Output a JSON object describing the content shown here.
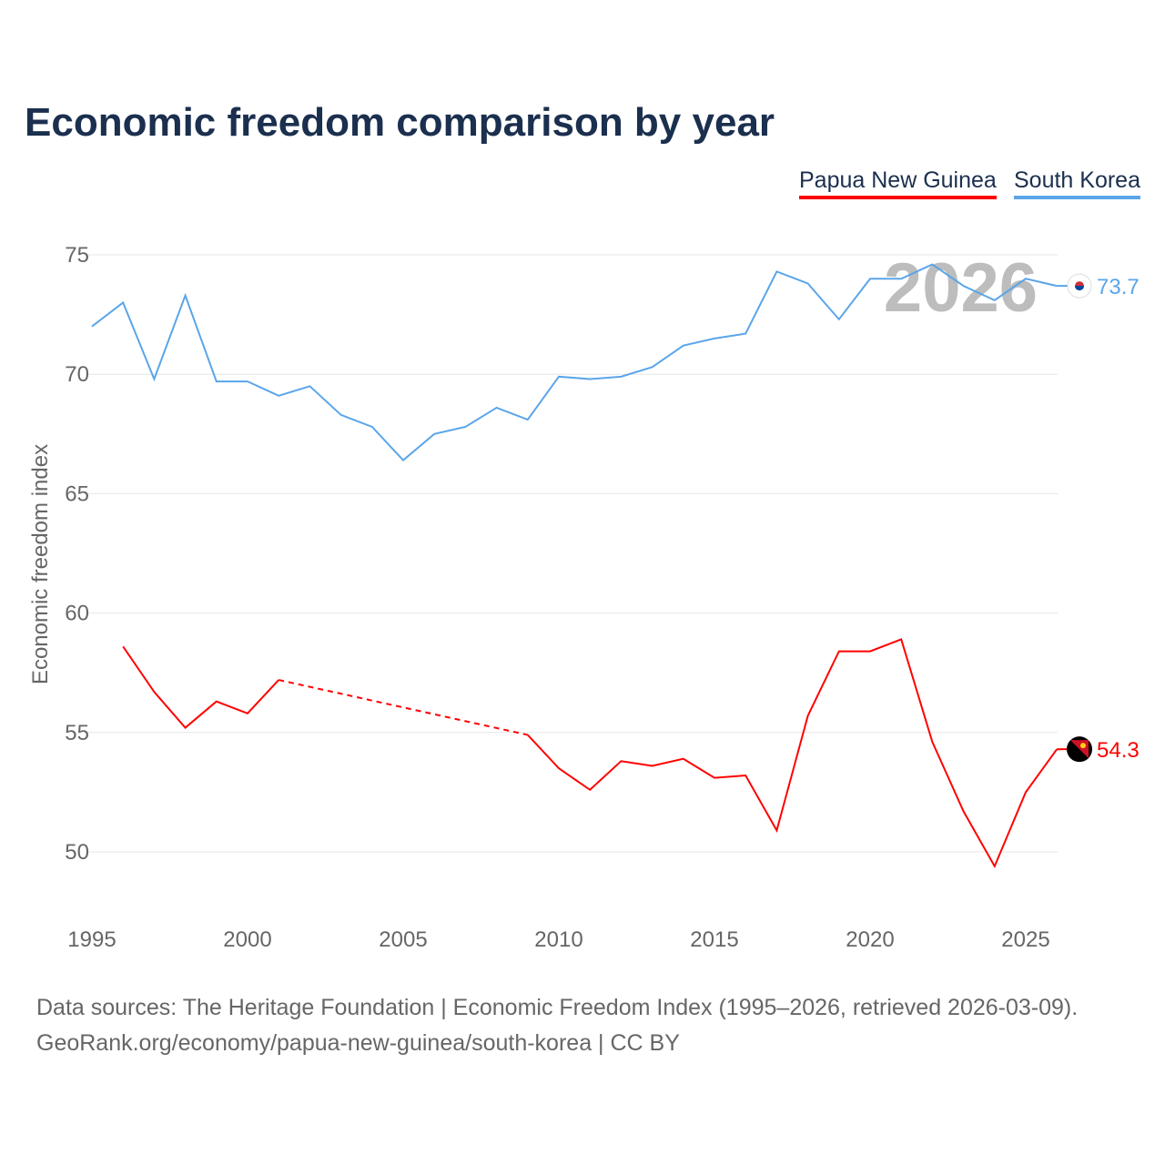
{
  "title": "Economic freedom comparison by year",
  "source_lines": [
    "Data sources: The Heritage Foundation | Economic Freedom Index (1995–2026, retrieved 2026-03-09).",
    "GeoRank.org/economy/papua-new-guinea/south-korea | CC BY"
  ],
  "chart_data": {
    "type": "line",
    "title": "Economic freedom comparison by year",
    "xlabel": "",
    "ylabel": "Economic freedom index",
    "year_label": "2026",
    "x": [
      1995,
      1996,
      1997,
      1998,
      1999,
      2000,
      2001,
      2002,
      2003,
      2004,
      2005,
      2006,
      2007,
      2008,
      2009,
      2010,
      2011,
      2012,
      2013,
      2014,
      2015,
      2016,
      2017,
      2018,
      2019,
      2020,
      2021,
      2022,
      2023,
      2024,
      2025,
      2026
    ],
    "xticks": [
      1995,
      2000,
      2005,
      2010,
      2015,
      2020,
      2025
    ],
    "yticks": [
      50,
      55,
      60,
      65,
      70,
      75
    ],
    "xlim": [
      1995,
      2026
    ],
    "ylim": [
      47.5,
      77
    ],
    "grid": true,
    "legend_position": "top-right",
    "series": [
      {
        "name": "Papua New Guinea",
        "color": "#ff0000",
        "end_label": "54.3",
        "values": [
          null,
          58.6,
          56.7,
          55.2,
          56.3,
          55.8,
          57.2,
          null,
          null,
          null,
          null,
          null,
          null,
          null,
          54.9,
          53.5,
          52.6,
          53.8,
          53.6,
          53.9,
          53.1,
          53.2,
          50.9,
          55.7,
          58.4,
          58.4,
          58.9,
          54.6,
          51.7,
          49.4,
          52.5,
          54.3
        ]
      },
      {
        "name": "South Korea",
        "color": "#5aa5ea",
        "end_label": "73.7",
        "values": [
          72.0,
          73.0,
          69.8,
          73.3,
          69.7,
          69.7,
          69.1,
          69.5,
          68.3,
          67.8,
          66.4,
          67.5,
          67.8,
          68.6,
          68.1,
          69.9,
          69.8,
          69.9,
          70.3,
          71.2,
          71.5,
          71.7,
          74.3,
          73.8,
          72.3,
          74.0,
          74.0,
          74.6,
          73.7,
          73.1,
          74.0,
          73.7
        ]
      }
    ]
  }
}
